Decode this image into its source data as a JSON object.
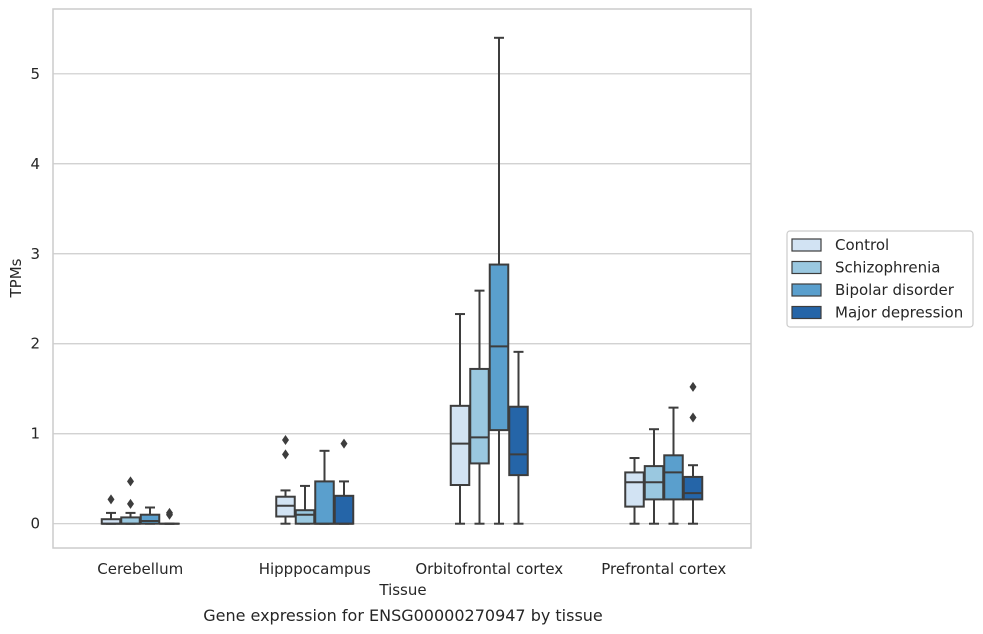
{
  "chart_data": {
    "type": "box",
    "title": "",
    "caption": "Gene expression for ENSG00000270947 by tissue",
    "xlabel": "Tissue",
    "ylabel": "TPMs",
    "ylim": [
      -0.27,
      5.72
    ],
    "yticks": [
      0,
      1,
      2,
      3,
      4,
      5
    ],
    "grid": "horizontal",
    "legend_position": "right",
    "categories": [
      "Cerebellum",
      "Hipppocampus",
      "Orbitofrontal cortex",
      "Prefrontal cortex"
    ],
    "series": [
      {
        "name": "Control",
        "color": "#d2e3f3",
        "boxes": [
          {
            "whisker_low": 0,
            "q1": 0,
            "median": 0,
            "q3": 0.05,
            "whisker_high": 0.12,
            "outliers": [
              0.27
            ]
          },
          {
            "whisker_low": 0,
            "q1": 0.08,
            "median": 0.2,
            "q3": 0.3,
            "whisker_high": 0.37,
            "outliers": [
              0.77,
              0.93
            ]
          },
          {
            "whisker_low": 0,
            "q1": 0.43,
            "median": 0.89,
            "q3": 1.31,
            "whisker_high": 2.33,
            "outliers": []
          },
          {
            "whisker_low": 0,
            "q1": 0.19,
            "median": 0.46,
            "q3": 0.57,
            "whisker_high": 0.73,
            "outliers": []
          }
        ]
      },
      {
        "name": "Schizophrenia",
        "color": "#9ac8e0",
        "boxes": [
          {
            "whisker_low": 0,
            "q1": 0,
            "median": 0,
            "q3": 0.07,
            "whisker_high": 0.12,
            "outliers": [
              0.22,
              0.47
            ]
          },
          {
            "whisker_low": 0,
            "q1": 0,
            "median": 0.1,
            "q3": 0.15,
            "whisker_high": 0.42,
            "outliers": []
          },
          {
            "whisker_low": 0,
            "q1": 0.67,
            "median": 0.96,
            "q3": 1.72,
            "whisker_high": 2.59,
            "outliers": []
          },
          {
            "whisker_low": 0,
            "q1": 0.27,
            "median": 0.46,
            "q3": 0.64,
            "whisker_high": 1.05,
            "outliers": []
          }
        ]
      },
      {
        "name": "Bipolar disorder",
        "color": "#5a9fcd",
        "boxes": [
          {
            "whisker_low": 0,
            "q1": 0,
            "median": 0.03,
            "q3": 0.1,
            "whisker_high": 0.18,
            "outliers": []
          },
          {
            "whisker_low": 0,
            "q1": 0,
            "median": 0,
            "q3": 0.47,
            "whisker_high": 0.81,
            "outliers": []
          },
          {
            "whisker_low": 0,
            "q1": 1.04,
            "median": 1.97,
            "q3": 2.88,
            "whisker_high": 5.4,
            "outliers": []
          },
          {
            "whisker_low": 0,
            "q1": 0.27,
            "median": 0.57,
            "q3": 0.76,
            "whisker_high": 1.29,
            "outliers": []
          }
        ]
      },
      {
        "name": "Major depression",
        "color": "#2565a8",
        "boxes": [
          {
            "whisker_low": 0,
            "q1": 0,
            "median": 0,
            "q3": 0,
            "whisker_high": 0,
            "outliers": [
              0.1,
              0.12
            ]
          },
          {
            "whisker_low": 0,
            "q1": 0,
            "median": 0,
            "q3": 0.31,
            "whisker_high": 0.47,
            "outliers": [
              0.89
            ]
          },
          {
            "whisker_low": 0,
            "q1": 0.54,
            "median": 0.77,
            "q3": 1.3,
            "whisker_high": 1.91,
            "outliers": []
          },
          {
            "whisker_low": 0,
            "q1": 0.27,
            "median": 0.34,
            "q3": 0.52,
            "whisker_high": 0.65,
            "outliers": [
              1.18,
              1.52
            ]
          }
        ]
      }
    ]
  }
}
